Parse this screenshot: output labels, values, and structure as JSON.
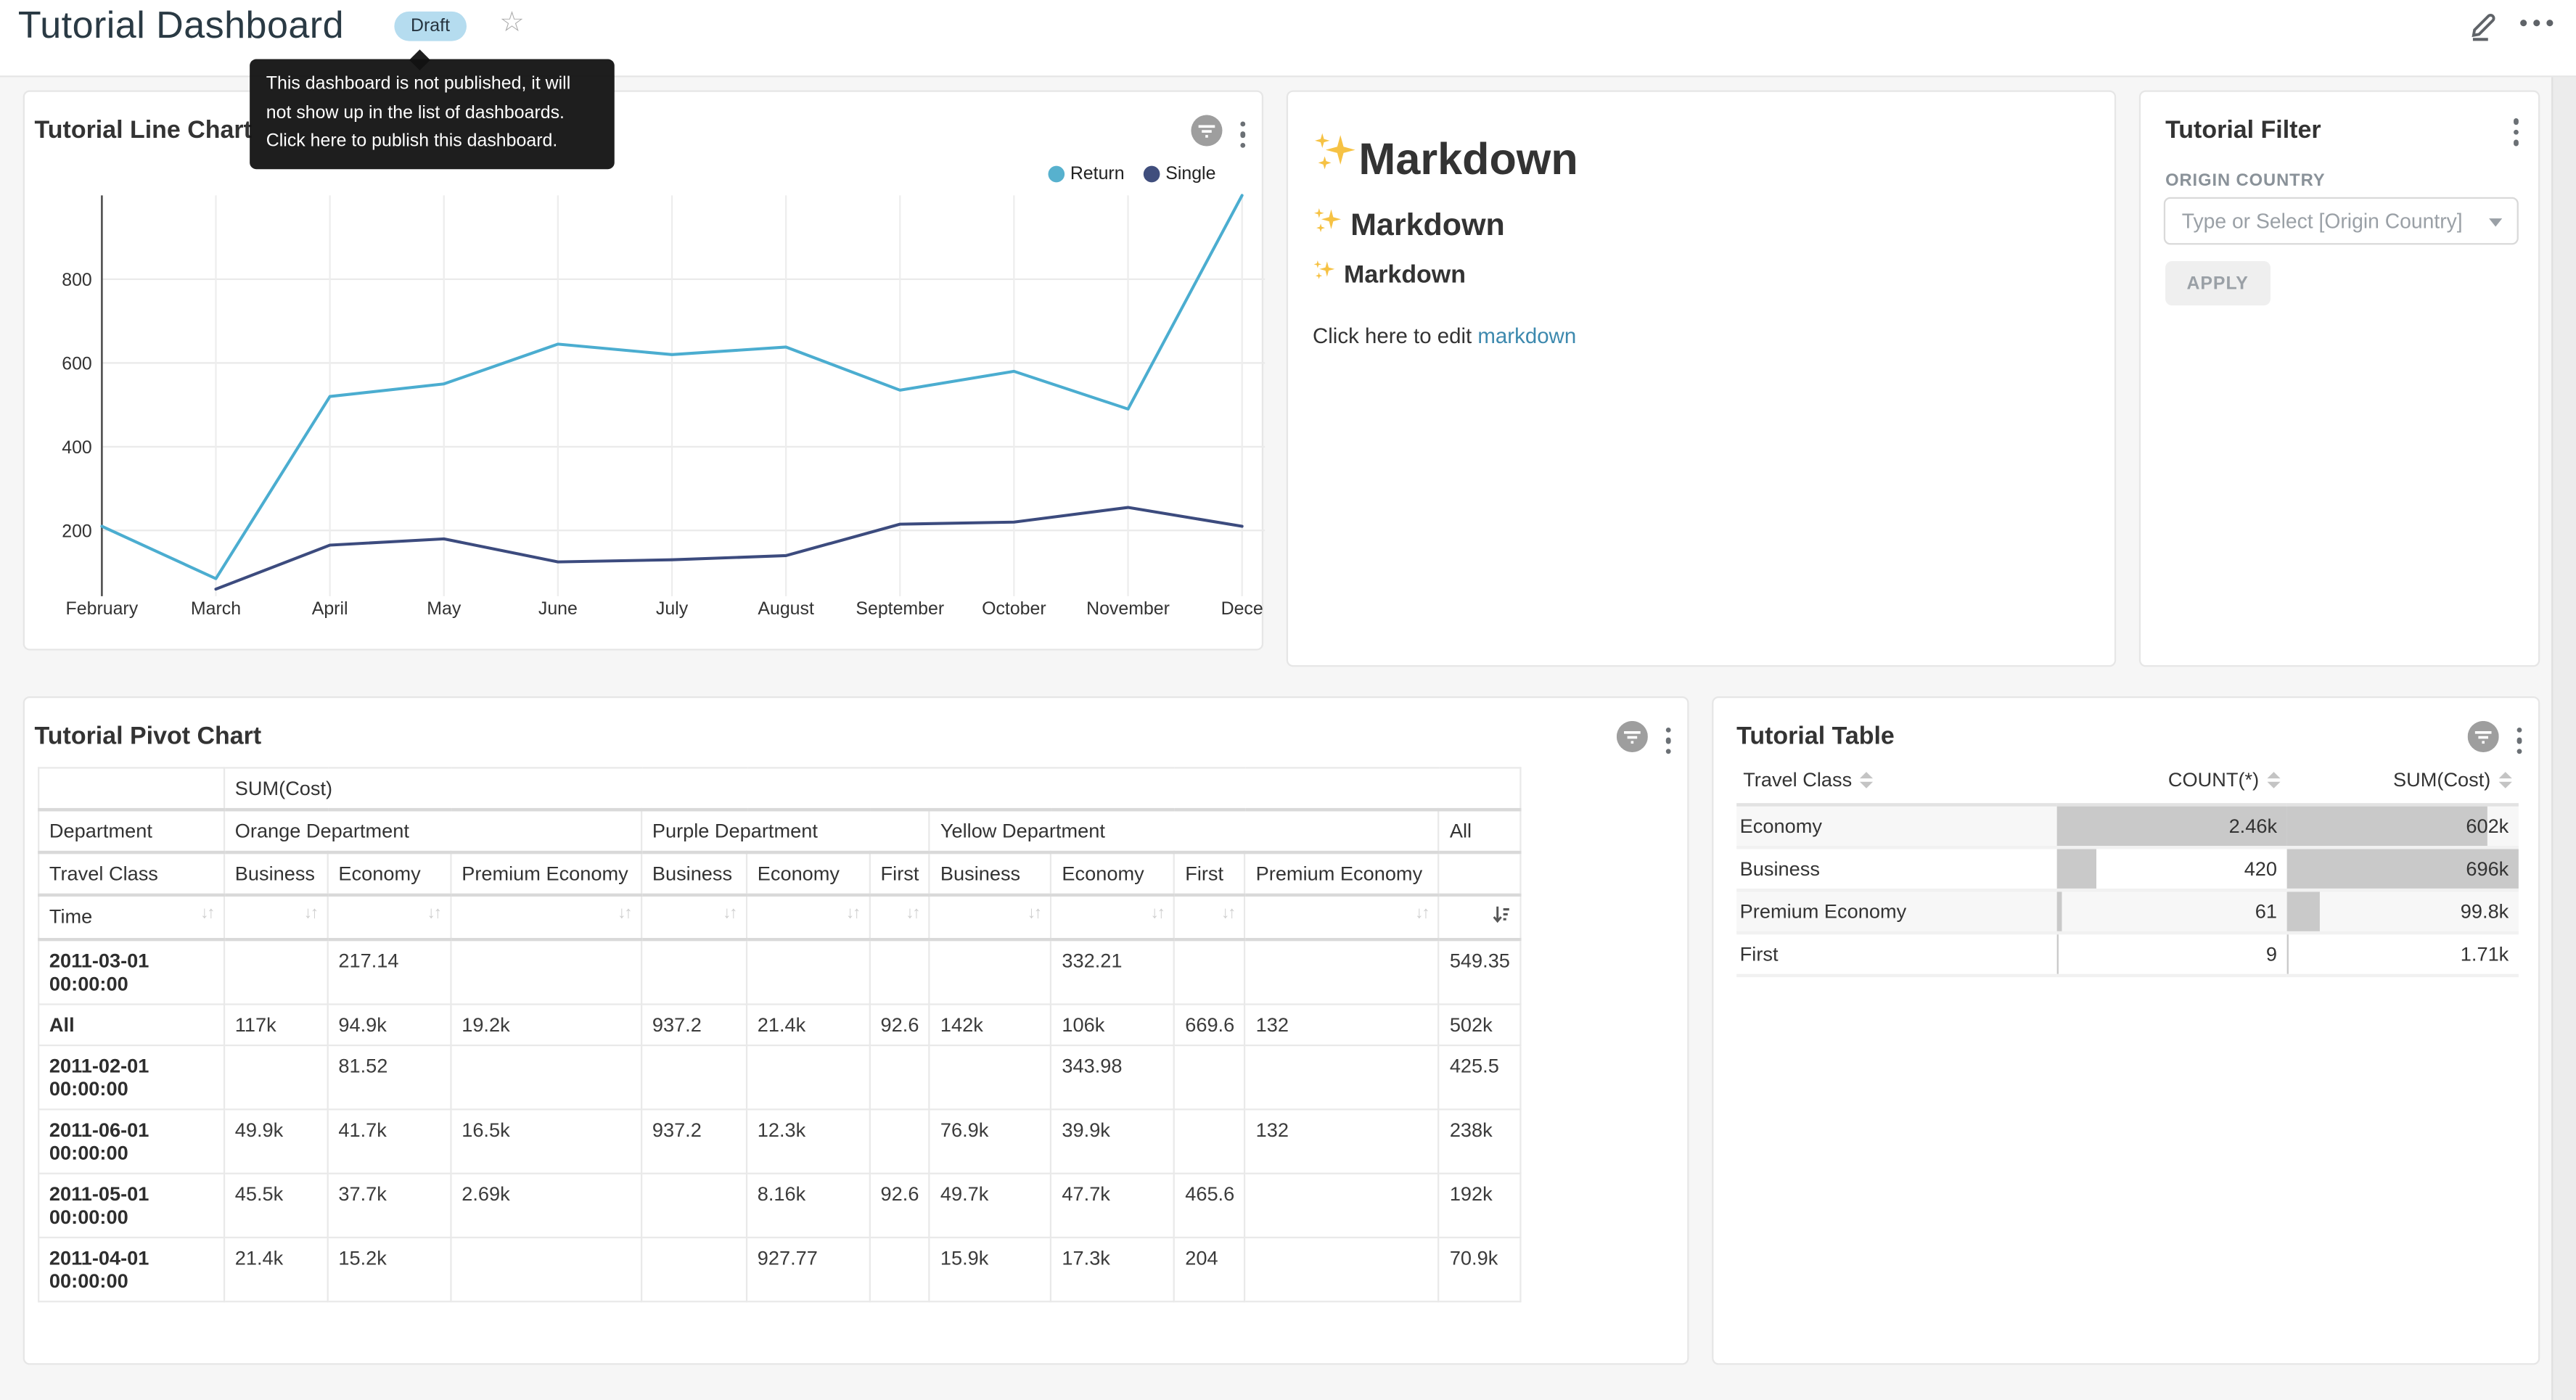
{
  "header": {
    "title": "Tutorial Dashboard",
    "badge": "Draft"
  },
  "tooltip": {
    "text": "This dashboard is not published, it will not show up in the list of dashboards. Click here to publish this dashboard."
  },
  "cards": {
    "markdown": {
      "h1": "Markdown",
      "h2": "Markdown",
      "h3": "Markdown",
      "paragraph_prefix": "Click here to edit ",
      "link_text": "markdown"
    },
    "filter": {
      "title": "Tutorial Filter",
      "field_label": "ORIGIN COUNTRY",
      "select_placeholder": "Type or Select [Origin Country]",
      "apply_label": "APPLY"
    }
  },
  "colors": {
    "return_series": "#4badd0",
    "single_series": "#3c4b7e",
    "link": "#3d89ae",
    "draft_badge_bg": "#b5dcef",
    "table_bar": "#c9c9c9",
    "tooltip_bg": "#121212"
  },
  "chart_data": [
    {
      "type": "line",
      "title": "Tutorial Line Chart",
      "x": [
        "February",
        "March",
        "April",
        "May",
        "June",
        "July",
        "August",
        "September",
        "October",
        "November",
        "December"
      ],
      "x_tick_labels": [
        "February",
        "March",
        "April",
        "May",
        "June",
        "July",
        "August",
        "September",
        "October",
        "November",
        "Dece"
      ],
      "yticks": [
        200,
        400,
        600,
        800
      ],
      "ylim": [
        60,
        1000
      ],
      "grid": true,
      "legend_position": "top-right",
      "series": [
        {
          "name": "Return",
          "color": "#4badd0",
          "dot_color": "#57b1ce",
          "values": [
            210,
            85,
            520,
            550,
            645,
            620,
            638,
            535,
            580,
            490,
            1000
          ]
        },
        {
          "name": "Single",
          "color": "#3c4b7e",
          "dot_color": "#404e7d",
          "values": [
            null,
            60,
            165,
            180,
            125,
            130,
            140,
            215,
            220,
            255,
            210
          ]
        }
      ]
    },
    {
      "type": "table",
      "title": "Tutorial Pivot Chart",
      "metric_header": "SUM(Cost)",
      "corner_labels": {
        "department": "Department",
        "travel_class": "Travel Class",
        "time": "Time"
      },
      "column_groups": [
        {
          "label": "Orange Department",
          "children": [
            "Business",
            "Economy",
            "Premium Economy"
          ]
        },
        {
          "label": "Purple Department",
          "children": [
            "Business",
            "Economy",
            "First"
          ]
        },
        {
          "label": "Yellow Department",
          "children": [
            "Business",
            "Economy",
            "First",
            "Premium Economy"
          ]
        },
        {
          "label": "All",
          "children": [
            ""
          ]
        }
      ],
      "sorted_column": "All",
      "rows": [
        {
          "key": "2011-03-01 00:00:00",
          "values": [
            "",
            "217.14",
            "",
            "",
            "",
            "",
            "",
            "332.21",
            "",
            "",
            "549.35"
          ]
        },
        {
          "key": "All",
          "values": [
            "117k",
            "94.9k",
            "19.2k",
            "937.2",
            "21.4k",
            "92.6",
            "142k",
            "106k",
            "669.6",
            "132",
            "502k"
          ]
        },
        {
          "key": "2011-02-01 00:00:00",
          "values": [
            "",
            "81.52",
            "",
            "",
            "",
            "",
            "",
            "343.98",
            "",
            "",
            "425.5"
          ]
        },
        {
          "key": "2011-06-01 00:00:00",
          "values": [
            "49.9k",
            "41.7k",
            "16.5k",
            "937.2",
            "12.3k",
            "",
            "76.9k",
            "39.9k",
            "",
            "132",
            "238k"
          ]
        },
        {
          "key": "2011-05-01 00:00:00",
          "values": [
            "45.5k",
            "37.7k",
            "2.69k",
            "",
            "8.16k",
            "92.6",
            "49.7k",
            "47.7k",
            "465.6",
            "",
            "192k"
          ]
        },
        {
          "key": "2011-04-01 00:00:00",
          "values": [
            "21.4k",
            "15.2k",
            "",
            "",
            "927.77",
            "",
            "15.9k",
            "17.3k",
            "204",
            "",
            "70.9k"
          ]
        }
      ]
    },
    {
      "type": "table",
      "title": "Tutorial Table",
      "columns": [
        "Travel Class",
        "COUNT(*)",
        "SUM(Cost)"
      ],
      "count_max": 2460,
      "sum_max": 696000,
      "rows": [
        {
          "travel_class": "Economy",
          "count": 2460,
          "count_display": "2.46k",
          "sum": 602000,
          "sum_display": "602k"
        },
        {
          "travel_class": "Business",
          "count": 420,
          "count_display": "420",
          "sum": 696000,
          "sum_display": "696k"
        },
        {
          "travel_class": "Premium Economy",
          "count": 61,
          "count_display": "61",
          "sum": 99800,
          "sum_display": "99.8k"
        },
        {
          "travel_class": "First",
          "count": 9,
          "count_display": "9",
          "sum": 1710,
          "sum_display": "1.71k"
        }
      ]
    }
  ]
}
